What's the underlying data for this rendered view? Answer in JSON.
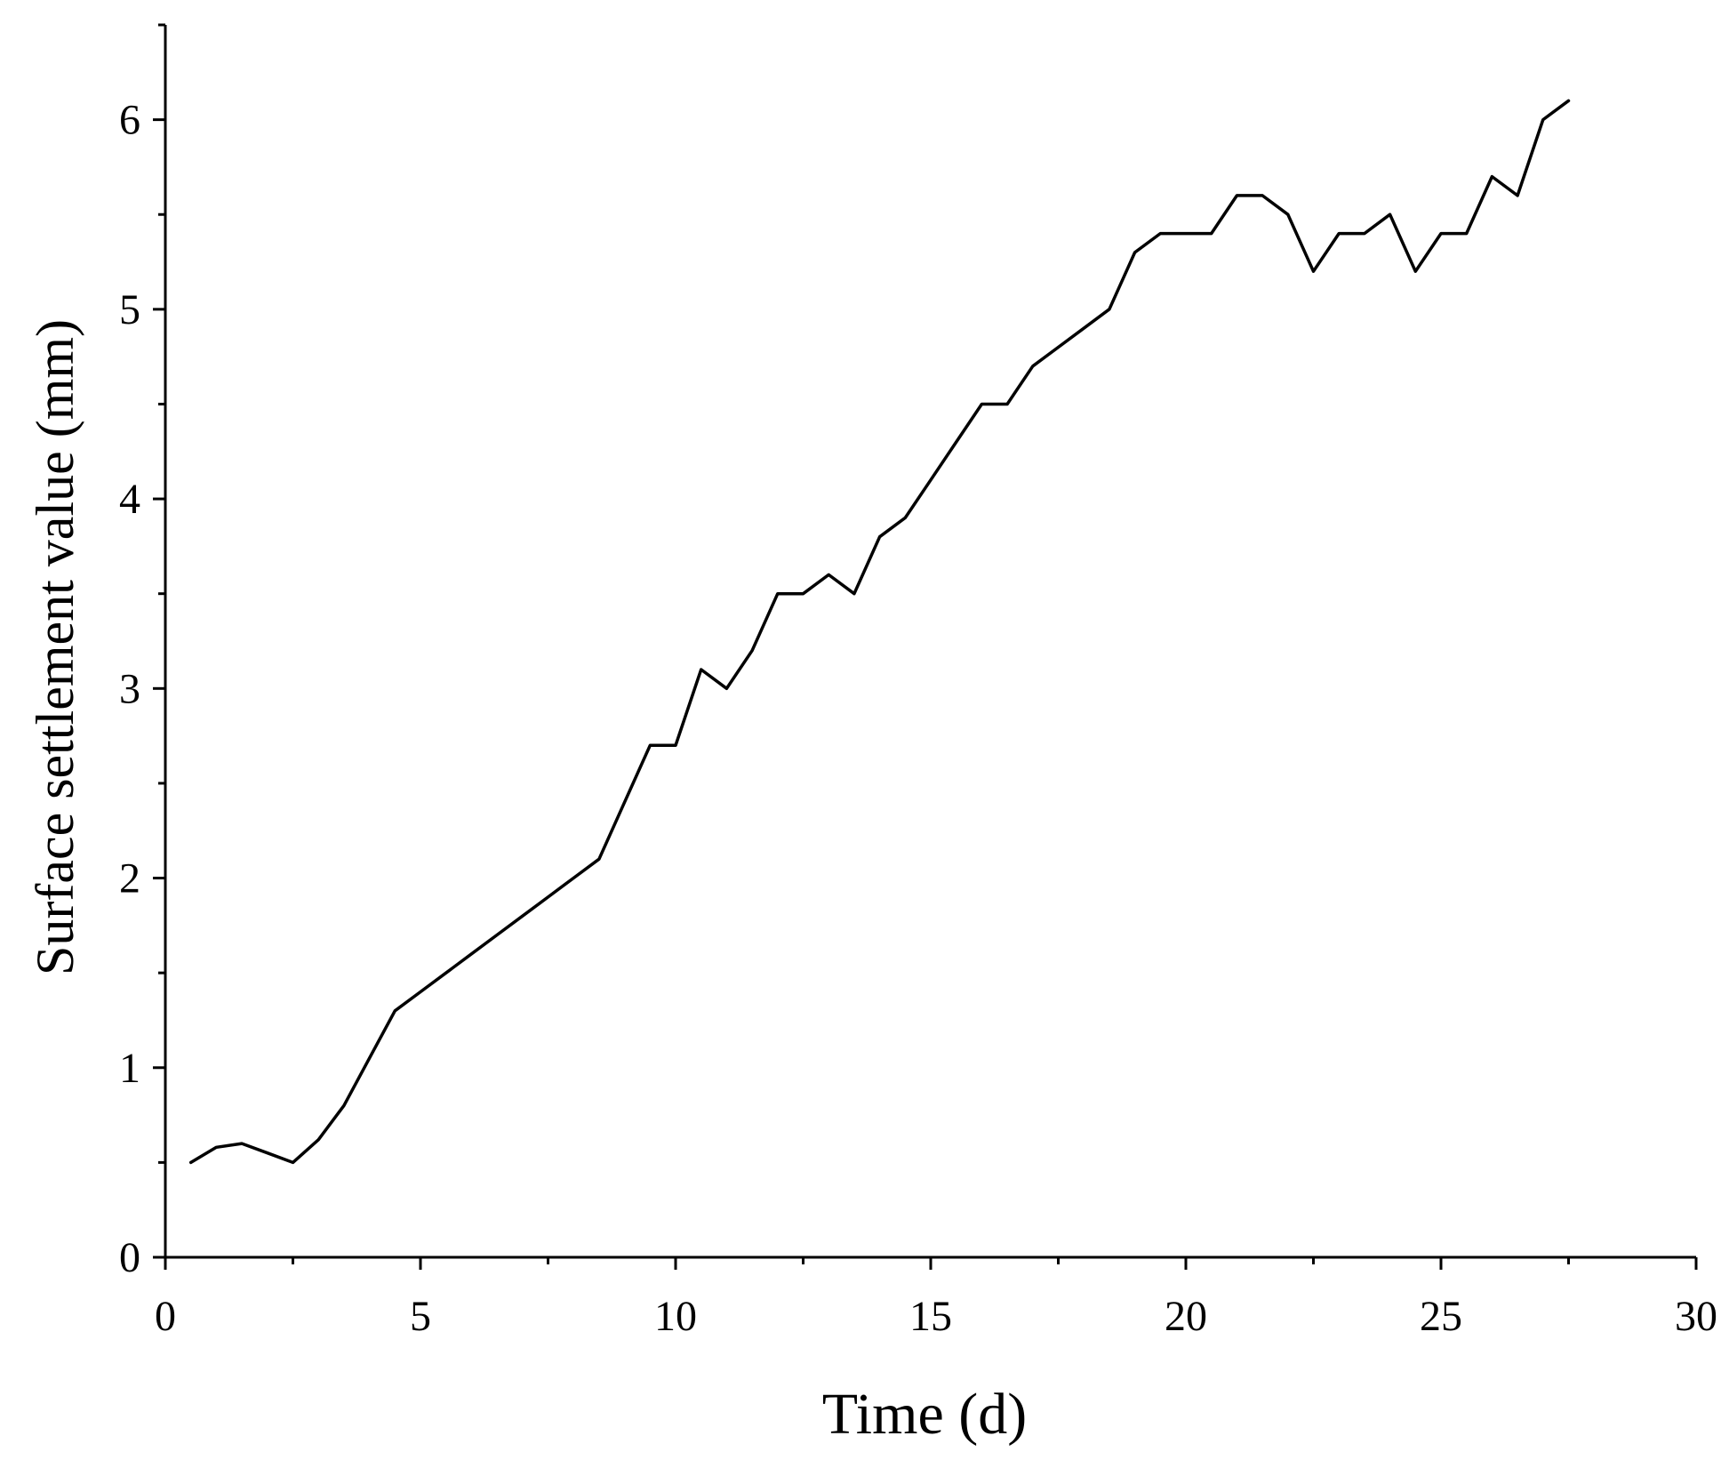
{
  "chart_data": {
    "type": "line",
    "xlabel": "Time (d)",
    "ylabel": "Surface settlement value (mm)",
    "xlim": [
      0,
      30
    ],
    "ylim": [
      0,
      6.5
    ],
    "x_ticks": [
      0,
      5,
      10,
      15,
      20,
      25,
      30
    ],
    "x_tick_labels": [
      "0",
      "5",
      "10",
      "15",
      "20",
      "25",
      "30"
    ],
    "y_ticks": [
      0,
      1,
      2,
      3,
      4,
      5,
      6
    ],
    "y_tick_labels": [
      "0",
      "1",
      "2",
      "3",
      "4",
      "5",
      "6"
    ],
    "grid": false,
    "line_color": "#000000",
    "series": [
      {
        "x": [
          0.5,
          1,
          1.5,
          2,
          2.5,
          3,
          3.5,
          4,
          4.5,
          5,
          5.5,
          6,
          6.5,
          7,
          7.5,
          8,
          8.5,
          9,
          9.5,
          10,
          10.5,
          11,
          11.5,
          12,
          12.5,
          13,
          13.5,
          14,
          14.5,
          15,
          15.5,
          16,
          16.5,
          17,
          17.5,
          18,
          18.5,
          19,
          19.5,
          20,
          20.5,
          21,
          21.5,
          22,
          22.5,
          23,
          23.5,
          24,
          24.5,
          25,
          25.5,
          26,
          26.5,
          27,
          27.5
        ],
        "y": [
          0.5,
          0.58,
          0.6,
          0.55,
          0.5,
          0.62,
          0.8,
          1.05,
          1.3,
          1.4,
          1.5,
          1.6,
          1.7,
          1.8,
          1.9,
          2.0,
          2.1,
          2.4,
          2.7,
          2.7,
          3.1,
          3.0,
          3.2,
          3.5,
          3.5,
          3.6,
          3.5,
          3.8,
          3.9,
          4.1,
          4.3,
          4.5,
          4.5,
          4.7,
          4.8,
          4.9,
          5.0,
          5.3,
          5.4,
          5.4,
          5.4,
          5.6,
          5.6,
          5.5,
          5.2,
          5.4,
          5.4,
          5.5,
          5.2,
          5.4,
          5.4,
          5.7,
          5.6,
          6.0,
          6.1
        ]
      }
    ]
  }
}
